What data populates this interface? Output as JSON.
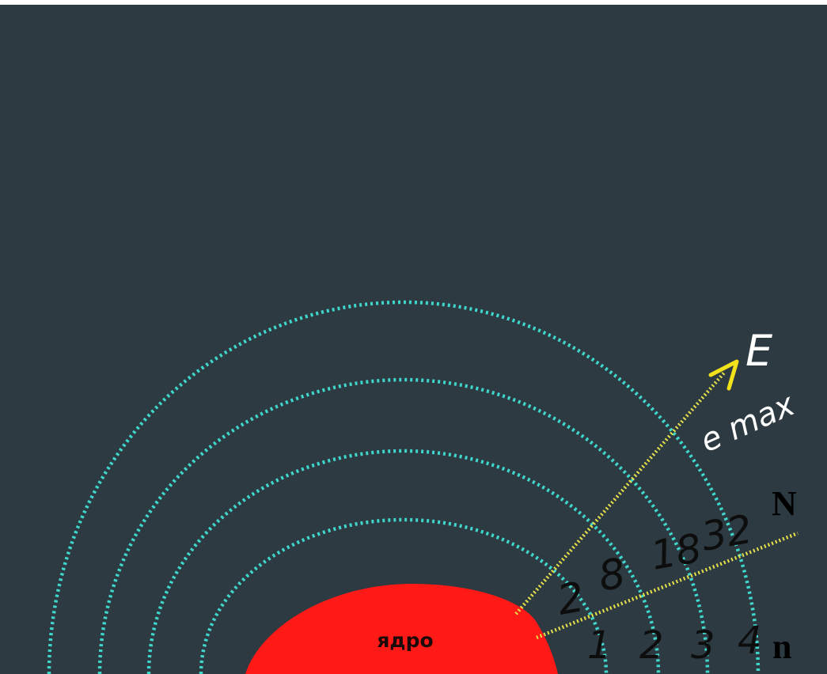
{
  "diagram": {
    "nucleus_label": "ядро",
    "energy_axis_label": "E",
    "energy_axis_sublabel": "e max",
    "shell_capacity_axis_label": "N",
    "shell_number_axis_label": "n",
    "shell_capacities": [
      "2",
      "8",
      "18",
      "32"
    ],
    "shell_numbers": [
      "1",
      "2",
      "3",
      "4"
    ]
  },
  "colors": {
    "background": "#2d3a41",
    "shell_dots": "#3fd6cc",
    "nucleus": "#ff1a17",
    "arrow_lines": "#e5e04a",
    "arrow_head": "#f2e21c",
    "handwritten_numbers": "#0d0d0d",
    "handwritten_labels": "#ffffff",
    "axis_letters": "#000000"
  }
}
